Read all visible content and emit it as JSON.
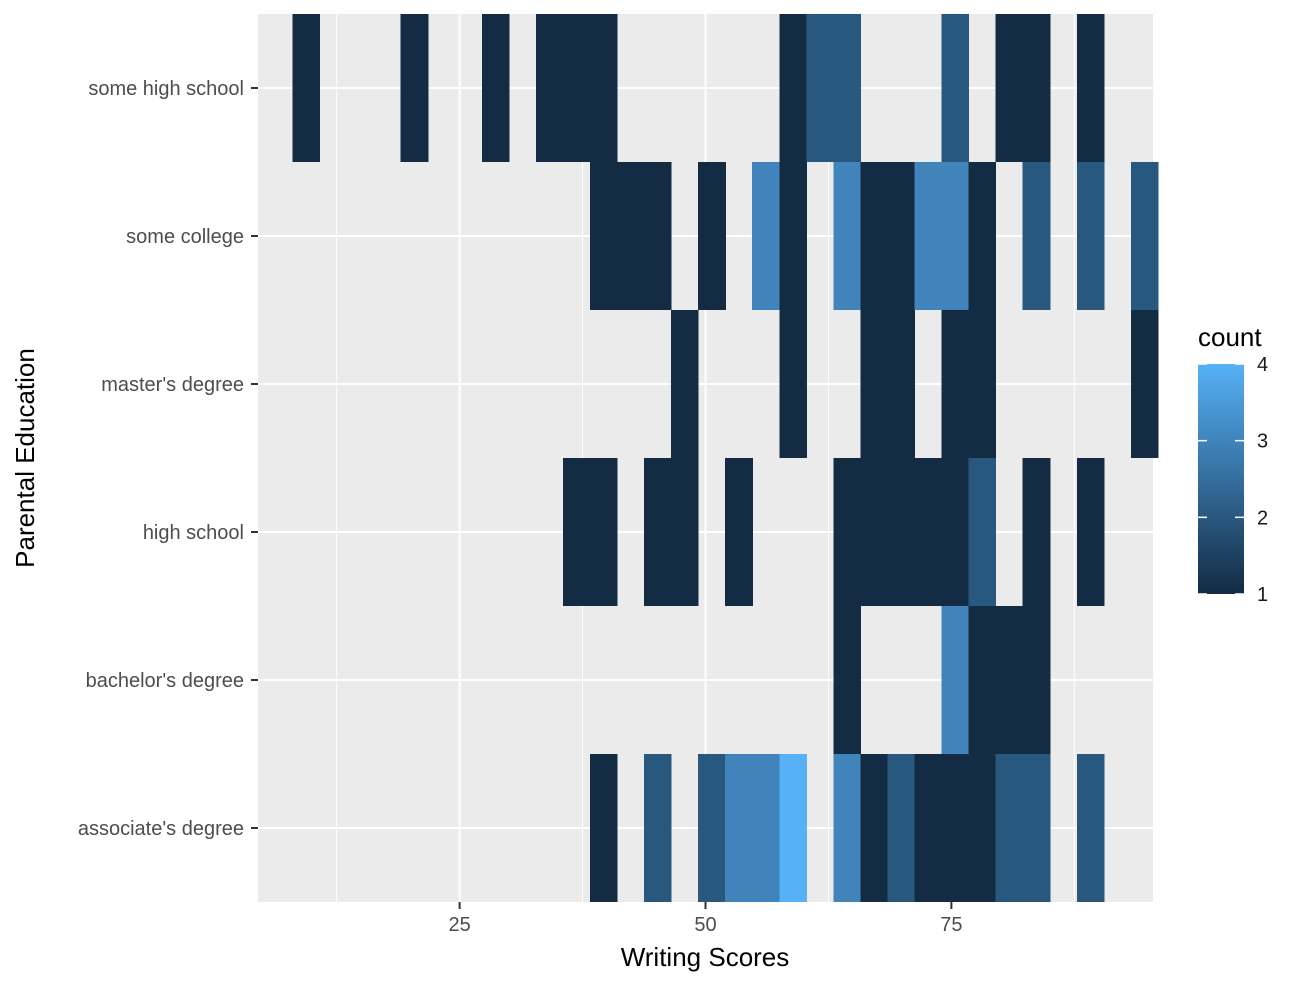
{
  "chart_data": {
    "type": "heatmap",
    "xlabel": "Writing Scores",
    "ylabel": "Parental Education",
    "xlim": [
      4.5,
      95.5
    ],
    "x_ticks": [
      25,
      50,
      75
    ],
    "x_tick_labels": [
      "25",
      "50",
      "75"
    ],
    "categories": [
      "associate's degree",
      "bachelor's degree",
      "high school",
      "master's degree",
      "some college",
      "some high school"
    ],
    "bin_width": 2.75,
    "bin_origin": 8,
    "legend": {
      "title": "count",
      "min": 1,
      "max": 4,
      "ticks": [
        1,
        2,
        3,
        4
      ],
      "tick_labels": [
        "1",
        "2",
        "3",
        "4"
      ],
      "position": "right",
      "low_color": "#132B43",
      "high_color": "#56B1F7"
    },
    "cells": [
      {
        "category": "associate's degree",
        "bin": 11,
        "count": 1
      },
      {
        "category": "associate's degree",
        "bin": 13,
        "count": 2
      },
      {
        "category": "associate's degree",
        "bin": 15,
        "count": 2
      },
      {
        "category": "associate's degree",
        "bin": 16,
        "count": 3
      },
      {
        "category": "associate's degree",
        "bin": 17,
        "count": 3
      },
      {
        "category": "associate's degree",
        "bin": 18,
        "count": 4
      },
      {
        "category": "associate's degree",
        "bin": 20,
        "count": 3
      },
      {
        "category": "associate's degree",
        "bin": 21,
        "count": 1
      },
      {
        "category": "associate's degree",
        "bin": 22,
        "count": 2
      },
      {
        "category": "associate's degree",
        "bin": 23,
        "count": 1
      },
      {
        "category": "associate's degree",
        "bin": 24,
        "count": 1
      },
      {
        "category": "associate's degree",
        "bin": 25,
        "count": 1
      },
      {
        "category": "associate's degree",
        "bin": 26,
        "count": 2
      },
      {
        "category": "associate's degree",
        "bin": 27,
        "count": 2
      },
      {
        "category": "associate's degree",
        "bin": 29,
        "count": 2
      },
      {
        "category": "bachelor's degree",
        "bin": 20,
        "count": 1
      },
      {
        "category": "bachelor's degree",
        "bin": 24,
        "count": 3
      },
      {
        "category": "bachelor's degree",
        "bin": 25,
        "count": 1
      },
      {
        "category": "bachelor's degree",
        "bin": 26,
        "count": 1
      },
      {
        "category": "bachelor's degree",
        "bin": 27,
        "count": 1
      },
      {
        "category": "high school",
        "bin": 10,
        "count": 1
      },
      {
        "category": "high school",
        "bin": 11,
        "count": 1
      },
      {
        "category": "high school",
        "bin": 13,
        "count": 1
      },
      {
        "category": "high school",
        "bin": 14,
        "count": 1
      },
      {
        "category": "high school",
        "bin": 16,
        "count": 1
      },
      {
        "category": "high school",
        "bin": 20,
        "count": 1
      },
      {
        "category": "high school",
        "bin": 21,
        "count": 1
      },
      {
        "category": "high school",
        "bin": 22,
        "count": 1
      },
      {
        "category": "high school",
        "bin": 23,
        "count": 1
      },
      {
        "category": "high school",
        "bin": 24,
        "count": 1
      },
      {
        "category": "high school",
        "bin": 25,
        "count": 2
      },
      {
        "category": "high school",
        "bin": 27,
        "count": 1
      },
      {
        "category": "high school",
        "bin": 29,
        "count": 1
      },
      {
        "category": "master's degree",
        "bin": 14,
        "count": 1
      },
      {
        "category": "master's degree",
        "bin": 18,
        "count": 1
      },
      {
        "category": "master's degree",
        "bin": 21,
        "count": 1
      },
      {
        "category": "master's degree",
        "bin": 22,
        "count": 1
      },
      {
        "category": "master's degree",
        "bin": 24,
        "count": 1
      },
      {
        "category": "master's degree",
        "bin": 25,
        "count": 1
      },
      {
        "category": "master's degree",
        "bin": 31,
        "count": 1
      },
      {
        "category": "some college",
        "bin": 11,
        "count": 1
      },
      {
        "category": "some college",
        "bin": 12,
        "count": 1
      },
      {
        "category": "some college",
        "bin": 13,
        "count": 1
      },
      {
        "category": "some college",
        "bin": 15,
        "count": 1
      },
      {
        "category": "some college",
        "bin": 17,
        "count": 3
      },
      {
        "category": "some college",
        "bin": 18,
        "count": 1
      },
      {
        "category": "some college",
        "bin": 20,
        "count": 3
      },
      {
        "category": "some college",
        "bin": 21,
        "count": 1
      },
      {
        "category": "some college",
        "bin": 22,
        "count": 1
      },
      {
        "category": "some college",
        "bin": 23,
        "count": 3
      },
      {
        "category": "some college",
        "bin": 24,
        "count": 3
      },
      {
        "category": "some college",
        "bin": 25,
        "count": 1
      },
      {
        "category": "some college",
        "bin": 27,
        "count": 2
      },
      {
        "category": "some college",
        "bin": 29,
        "count": 2
      },
      {
        "category": "some college",
        "bin": 31,
        "count": 2
      },
      {
        "category": "some high school",
        "bin": 0,
        "count": 1
      },
      {
        "category": "some high school",
        "bin": 4,
        "count": 1
      },
      {
        "category": "some high school",
        "bin": 7,
        "count": 1
      },
      {
        "category": "some high school",
        "bin": 9,
        "count": 1
      },
      {
        "category": "some high school",
        "bin": 10,
        "count": 1
      },
      {
        "category": "some high school",
        "bin": 11,
        "count": 1
      },
      {
        "category": "some high school",
        "bin": 18,
        "count": 1
      },
      {
        "category": "some high school",
        "bin": 19,
        "count": 2
      },
      {
        "category": "some high school",
        "bin": 20,
        "count": 2
      },
      {
        "category": "some high school",
        "bin": 24,
        "count": 2
      },
      {
        "category": "some high school",
        "bin": 26,
        "count": 1
      },
      {
        "category": "some high school",
        "bin": 27,
        "count": 1
      },
      {
        "category": "some high school",
        "bin": 29,
        "count": 1
      }
    ]
  }
}
